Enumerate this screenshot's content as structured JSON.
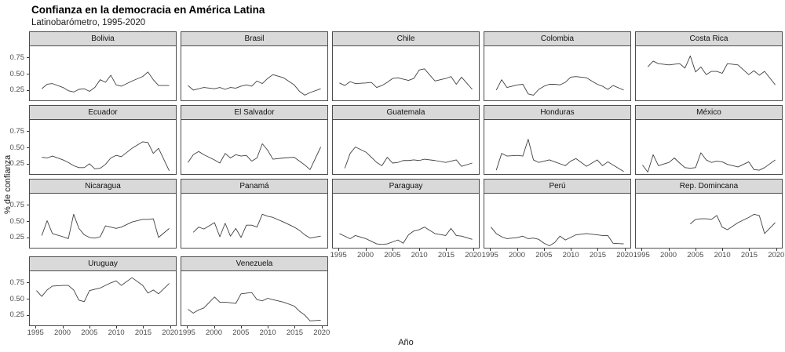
{
  "title": "Confianza en la democracia en América Latina",
  "subtitle": "Latinobarómetro, 1995-2020",
  "axes": {
    "y_title": "% de confianza",
    "x_title": "Año"
  },
  "chart_data": {
    "type": "line",
    "title": "Confianza en la democracia en América Latina",
    "subtitle": "Latinobarómetro, 1995-2020",
    "layout": "facet-grid small multiples, 5 columns, 17 panels, no gridlines, no legend, black line per panel",
    "xlabel": "Año",
    "ylabel": "% de confianza",
    "x_ticks": [
      1995,
      2000,
      2005,
      2010,
      2015,
      2020
    ],
    "y_ticks": [
      0.75,
      0.5,
      0.25
    ],
    "y_tick_labels": [
      "0.75",
      "0.50",
      "0.25"
    ],
    "x_tick_labels": [
      "1995",
      "2000",
      "2005",
      "2010",
      "2015",
      "2020"
    ],
    "xlim": [
      1993.8,
      2021.2
    ],
    "ylim": [
      0.08,
      0.92
    ],
    "line_color": "#3f3f3f",
    "strip_fill": "#d9d9d9",
    "border_color": "#4d4d4d",
    "facets": [
      {
        "name": "Bolivia",
        "years": [
          1996,
          1997,
          1998,
          2000,
          2001,
          2002,
          2003,
          2004,
          2005,
          2006,
          2007,
          2008,
          2009,
          2010,
          2011,
          2013,
          2015,
          2016,
          2017,
          2018,
          2020
        ],
        "values": [
          0.26,
          0.33,
          0.34,
          0.28,
          0.23,
          0.21,
          0.25,
          0.26,
          0.22,
          0.28,
          0.4,
          0.36,
          0.47,
          0.32,
          0.3,
          0.38,
          0.45,
          0.52,
          0.4,
          0.31,
          0.31
        ]
      },
      {
        "name": "Brasil",
        "years": [
          1995,
          1996,
          1997,
          1998,
          2000,
          2001,
          2002,
          2003,
          2004,
          2005,
          2006,
          2007,
          2008,
          2009,
          2010,
          2011,
          2013,
          2015,
          2016,
          2017,
          2018,
          2020
        ],
        "values": [
          0.31,
          0.24,
          0.26,
          0.28,
          0.26,
          0.28,
          0.25,
          0.28,
          0.27,
          0.3,
          0.32,
          0.3,
          0.38,
          0.34,
          0.42,
          0.48,
          0.43,
          0.32,
          0.22,
          0.16,
          0.2,
          0.26
        ]
      },
      {
        "name": "Chile",
        "years": [
          1995,
          1996,
          1997,
          1998,
          2000,
          2001,
          2002,
          2003,
          2004,
          2005,
          2006,
          2007,
          2008,
          2009,
          2010,
          2011,
          2013,
          2015,
          2016,
          2017,
          2018,
          2020
        ],
        "values": [
          0.35,
          0.31,
          0.37,
          0.34,
          0.35,
          0.36,
          0.28,
          0.31,
          0.36,
          0.42,
          0.43,
          0.41,
          0.39,
          0.42,
          0.55,
          0.57,
          0.38,
          0.42,
          0.45,
          0.33,
          0.44,
          0.25
        ]
      },
      {
        "name": "Colombia",
        "years": [
          1996,
          1997,
          1998,
          2000,
          2001,
          2002,
          2003,
          2004,
          2005,
          2006,
          2007,
          2008,
          2009,
          2010,
          2011,
          2013,
          2015,
          2016,
          2017,
          2018,
          2020
        ],
        "values": [
          0.24,
          0.4,
          0.28,
          0.32,
          0.33,
          0.18,
          0.16,
          0.25,
          0.3,
          0.33,
          0.33,
          0.32,
          0.36,
          0.44,
          0.45,
          0.43,
          0.33,
          0.3,
          0.25,
          0.31,
          0.24
        ]
      },
      {
        "name": "Costa Rica",
        "years": [
          1996,
          1997,
          1998,
          2000,
          2001,
          2002,
          2003,
          2004,
          2005,
          2006,
          2007,
          2008,
          2009,
          2010,
          2011,
          2013,
          2015,
          2016,
          2017,
          2018,
          2020
        ],
        "values": [
          0.6,
          0.69,
          0.65,
          0.63,
          0.64,
          0.65,
          0.58,
          0.77,
          0.52,
          0.6,
          0.48,
          0.53,
          0.53,
          0.5,
          0.65,
          0.63,
          0.48,
          0.54,
          0.47,
          0.53,
          0.32
        ]
      },
      {
        "name": "Ecuador",
        "years": [
          1996,
          1997,
          1998,
          2000,
          2001,
          2002,
          2003,
          2004,
          2005,
          2006,
          2007,
          2008,
          2009,
          2010,
          2011,
          2013,
          2015,
          2016,
          2017,
          2018,
          2020
        ],
        "values": [
          0.34,
          0.33,
          0.36,
          0.3,
          0.26,
          0.21,
          0.18,
          0.18,
          0.24,
          0.16,
          0.17,
          0.23,
          0.33,
          0.37,
          0.35,
          0.48,
          0.58,
          0.57,
          0.4,
          0.48,
          0.13
        ]
      },
      {
        "name": "El Salvador",
        "years": [
          1995,
          1996,
          1997,
          1998,
          2000,
          2001,
          2002,
          2003,
          2004,
          2005,
          2006,
          2007,
          2008,
          2009,
          2010,
          2011,
          2013,
          2015,
          2016,
          2017,
          2018,
          2020
        ],
        "values": [
          0.26,
          0.38,
          0.43,
          0.38,
          0.3,
          0.25,
          0.4,
          0.33,
          0.38,
          0.36,
          0.37,
          0.28,
          0.33,
          0.55,
          0.45,
          0.31,
          0.33,
          0.34,
          0.28,
          0.22,
          0.15,
          0.5
        ]
      },
      {
        "name": "Guatemala",
        "years": [
          1996,
          1997,
          1998,
          2000,
          2001,
          2002,
          2003,
          2004,
          2005,
          2006,
          2007,
          2008,
          2009,
          2010,
          2011,
          2013,
          2015,
          2016,
          2017,
          2018,
          2020
        ],
        "values": [
          0.17,
          0.4,
          0.5,
          0.42,
          0.34,
          0.26,
          0.21,
          0.34,
          0.25,
          0.26,
          0.29,
          0.29,
          0.3,
          0.29,
          0.31,
          0.29,
          0.26,
          0.28,
          0.3,
          0.2,
          0.25
        ]
      },
      {
        "name": "Honduras",
        "years": [
          1996,
          1997,
          1998,
          2000,
          2001,
          2002,
          2003,
          2004,
          2005,
          2006,
          2007,
          2008,
          2009,
          2010,
          2011,
          2013,
          2015,
          2016,
          2017,
          2018,
          2020
        ],
        "values": [
          0.14,
          0.4,
          0.36,
          0.37,
          0.36,
          0.62,
          0.3,
          0.26,
          0.28,
          0.3,
          0.27,
          0.24,
          0.21,
          0.28,
          0.32,
          0.2,
          0.3,
          0.21,
          0.27,
          0.22,
          0.12
        ]
      },
      {
        "name": "México",
        "years": [
          1995,
          1996,
          1997,
          1998,
          2000,
          2001,
          2002,
          2003,
          2004,
          2005,
          2006,
          2007,
          2008,
          2009,
          2010,
          2011,
          2013,
          2015,
          2016,
          2017,
          2018,
          2020
        ],
        "values": [
          0.22,
          0.11,
          0.38,
          0.21,
          0.26,
          0.33,
          0.25,
          0.18,
          0.17,
          0.18,
          0.41,
          0.3,
          0.26,
          0.28,
          0.27,
          0.23,
          0.19,
          0.27,
          0.15,
          0.14,
          0.18,
          0.3
        ]
      },
      {
        "name": "Nicaragua",
        "years": [
          1996,
          1997,
          1998,
          2000,
          2001,
          2002,
          2003,
          2004,
          2005,
          2006,
          2007,
          2008,
          2009,
          2010,
          2011,
          2013,
          2015,
          2016,
          2017,
          2018,
          2020
        ],
        "values": [
          0.27,
          0.5,
          0.3,
          0.25,
          0.22,
          0.6,
          0.38,
          0.28,
          0.24,
          0.23,
          0.25,
          0.42,
          0.4,
          0.38,
          0.4,
          0.48,
          0.52,
          0.52,
          0.53,
          0.24,
          0.38
        ]
      },
      {
        "name": "Panamá",
        "years": [
          1996,
          1997,
          1998,
          2000,
          2001,
          2002,
          2003,
          2004,
          2005,
          2006,
          2007,
          2008,
          2009,
          2010,
          2011,
          2013,
          2015,
          2016,
          2017,
          2018,
          2020
        ],
        "values": [
          0.32,
          0.4,
          0.37,
          0.47,
          0.25,
          0.46,
          0.26,
          0.38,
          0.24,
          0.43,
          0.43,
          0.4,
          0.6,
          0.57,
          0.55,
          0.48,
          0.4,
          0.35,
          0.28,
          0.23,
          0.26
        ]
      },
      {
        "name": "Paraguay",
        "years": [
          1995,
          1996,
          1997,
          1998,
          2000,
          2001,
          2002,
          2003,
          2004,
          2005,
          2006,
          2007,
          2008,
          2009,
          2010,
          2011,
          2013,
          2015,
          2016,
          2017,
          2018,
          2020
        ],
        "values": [
          0.3,
          0.26,
          0.22,
          0.27,
          0.22,
          0.18,
          0.14,
          0.13,
          0.14,
          0.17,
          0.2,
          0.15,
          0.28,
          0.34,
          0.36,
          0.4,
          0.3,
          0.27,
          0.38,
          0.27,
          0.26,
          0.21
        ]
      },
      {
        "name": "Perú",
        "years": [
          1995,
          1996,
          1997,
          1998,
          2000,
          2001,
          2002,
          2003,
          2004,
          2005,
          2006,
          2007,
          2008,
          2009,
          2010,
          2011,
          2013,
          2015,
          2016,
          2017,
          2018,
          2020
        ],
        "values": [
          0.4,
          0.3,
          0.25,
          0.22,
          0.24,
          0.26,
          0.22,
          0.23,
          0.21,
          0.15,
          0.11,
          0.16,
          0.26,
          0.2,
          0.24,
          0.28,
          0.3,
          0.28,
          0.27,
          0.27,
          0.15,
          0.14
        ]
      },
      {
        "name": "Rep. Domincana",
        "years": [
          2004,
          2005,
          2006,
          2007,
          2008,
          2009,
          2010,
          2011,
          2013,
          2015,
          2016,
          2017,
          2018,
          2020
        ],
        "values": [
          0.45,
          0.52,
          0.53,
          0.53,
          0.52,
          0.58,
          0.4,
          0.36,
          0.47,
          0.55,
          0.6,
          0.58,
          0.3,
          0.47
        ]
      },
      {
        "name": "Uruguay",
        "years": [
          1995,
          1996,
          1997,
          1998,
          2000,
          2001,
          2002,
          2003,
          2004,
          2005,
          2006,
          2007,
          2008,
          2009,
          2010,
          2011,
          2013,
          2015,
          2016,
          2017,
          2018,
          2020
        ],
        "values": [
          0.62,
          0.53,
          0.63,
          0.69,
          0.7,
          0.7,
          0.63,
          0.47,
          0.45,
          0.62,
          0.64,
          0.66,
          0.7,
          0.74,
          0.77,
          0.7,
          0.82,
          0.7,
          0.58,
          0.63,
          0.57,
          0.73
        ]
      },
      {
        "name": "Venezuela",
        "years": [
          1995,
          1996,
          1997,
          1998,
          2000,
          2001,
          2002,
          2003,
          2004,
          2005,
          2006,
          2007,
          2008,
          2009,
          2010,
          2011,
          2013,
          2015,
          2016,
          2017,
          2018,
          2020
        ],
        "values": [
          0.33,
          0.27,
          0.32,
          0.35,
          0.52,
          0.44,
          0.44,
          0.43,
          0.42,
          0.57,
          0.58,
          0.59,
          0.48,
          0.46,
          0.5,
          0.48,
          0.44,
          0.38,
          0.3,
          0.24,
          0.15,
          0.16
        ]
      }
    ]
  }
}
